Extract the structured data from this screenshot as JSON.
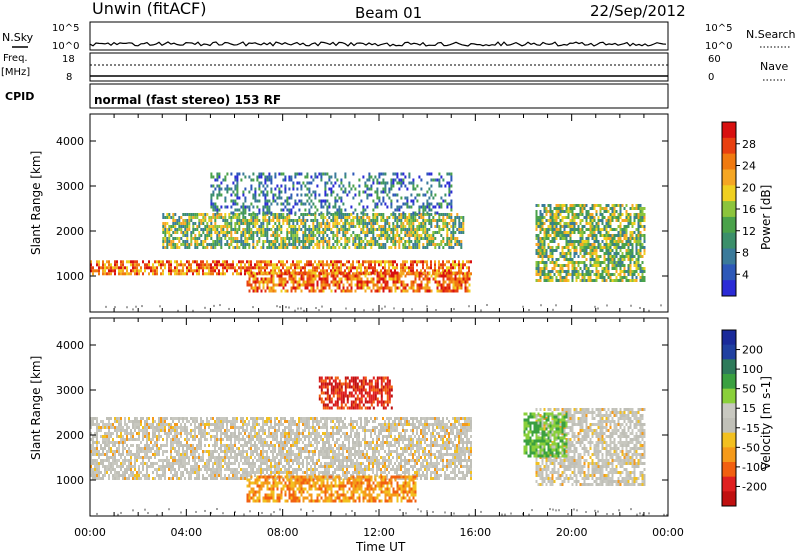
{
  "header": {
    "station": "Unwin (fitACF)",
    "beam": "Beam 01",
    "date": "22/Sep/2012"
  },
  "top_panels": {
    "nsky_label": "N.Sky",
    "nsky_ticks": [
      "10^5",
      "10^0"
    ],
    "nsearch_label": "N.Search",
    "nsearch_ticks": [
      "10^5",
      "10^0"
    ],
    "freq_label_1": "Freq.",
    "freq_label_2": "[MHz]",
    "freq_ticks": [
      "18",
      "8"
    ],
    "nave_label": "Nave",
    "nave_ticks": [
      "60",
      "0"
    ],
    "cpid_label": "CPID",
    "cpid_text": "normal (fast stereo) 153 RF"
  },
  "colors": {
    "power": [
      "#2b2bd6",
      "#2d58b8",
      "#3a7a9a",
      "#3b8f6a",
      "#4aa24a",
      "#8cc43c",
      "#f0d020",
      "#f5a623",
      "#f07a10",
      "#e84010",
      "#d81010"
    ],
    "velocity": [
      "#c01010",
      "#e02020",
      "#f26010",
      "#f59a1a",
      "#f2c020",
      "#c0c0b8",
      "#c8c8c0",
      "#8ad03a",
      "#3aa040",
      "#2e7a5a",
      "#2040a0",
      "#1a2a9a"
    ],
    "ground": "#a0a0a0"
  },
  "chart_data": [
    {
      "type": "heatmap",
      "name": "power",
      "xlabel": "Time UT",
      "ylabel": "Slant Range [km]",
      "x_ticks": [
        "00:00",
        "04:00",
        "08:00",
        "12:00",
        "16:00",
        "20:00",
        "00:00"
      ],
      "x_hours": [
        0,
        4,
        8,
        12,
        16,
        20,
        24
      ],
      "y_ticks": [
        "1000",
        "2000",
        "3000",
        "4000"
      ],
      "y_values": [
        1000,
        2000,
        3000,
        4000
      ],
      "xlim": [
        0,
        24
      ],
      "ylim": [
        200,
        4600
      ],
      "colorbar_label": "Power [dB]",
      "colorbar_ticks": [
        "28",
        "24",
        "20",
        "16",
        "12",
        "8",
        "4"
      ],
      "colorbar_range": [
        0,
        32
      ],
      "echo_regions": [
        {
          "t_start": 0.0,
          "t_end": 15.8,
          "r_start": 1050,
          "r_end": 1350,
          "level": "high"
        },
        {
          "t_start": 6.5,
          "t_end": 15.8,
          "r_start": 650,
          "r_end": 1100,
          "level": "high"
        },
        {
          "t_start": 3.0,
          "t_end": 15.5,
          "r_start": 1600,
          "r_end": 2400,
          "level": "mid"
        },
        {
          "t_start": 5.0,
          "t_end": 15.0,
          "r_start": 2400,
          "r_end": 3300,
          "level": "low"
        },
        {
          "t_start": 18.5,
          "t_end": 23.0,
          "r_start": 900,
          "r_end": 2600,
          "level": "mid"
        }
      ]
    },
    {
      "type": "heatmap",
      "name": "velocity",
      "xlabel": "Time UT",
      "ylabel": "Slant Range [km]",
      "x_ticks": [
        "00:00",
        "04:00",
        "08:00",
        "12:00",
        "16:00",
        "20:00",
        "00:00"
      ],
      "x_hours": [
        0,
        4,
        8,
        12,
        16,
        20,
        24
      ],
      "y_ticks": [
        "1000",
        "2000",
        "3000",
        "4000"
      ],
      "y_values": [
        1000,
        2000,
        3000,
        4000
      ],
      "xlim": [
        0,
        24
      ],
      "ylim": [
        200,
        4600
      ],
      "colorbar_label": "Velocity [m s-1]",
      "colorbar_ticks": [
        "200",
        "100",
        "50",
        "15",
        "-15",
        "-50",
        "-100",
        "-200"
      ],
      "colorbar_range": [
        -250,
        250
      ],
      "echo_regions": [
        {
          "t_start": 0.0,
          "t_end": 15.8,
          "r_start": 1000,
          "r_end": 2400,
          "level": "near-zero"
        },
        {
          "t_start": 6.5,
          "t_end": 13.5,
          "r_start": 500,
          "r_end": 1100,
          "level": "negative"
        },
        {
          "t_start": 9.5,
          "t_end": 12.5,
          "r_start": 2600,
          "r_end": 3300,
          "level": "strong-negative"
        },
        {
          "t_start": 18.5,
          "t_end": 23.0,
          "r_start": 900,
          "r_end": 2600,
          "level": "near-zero"
        },
        {
          "t_start": 18.0,
          "t_end": 19.8,
          "r_start": 1500,
          "r_end": 2500,
          "level": "positive"
        }
      ]
    }
  ]
}
